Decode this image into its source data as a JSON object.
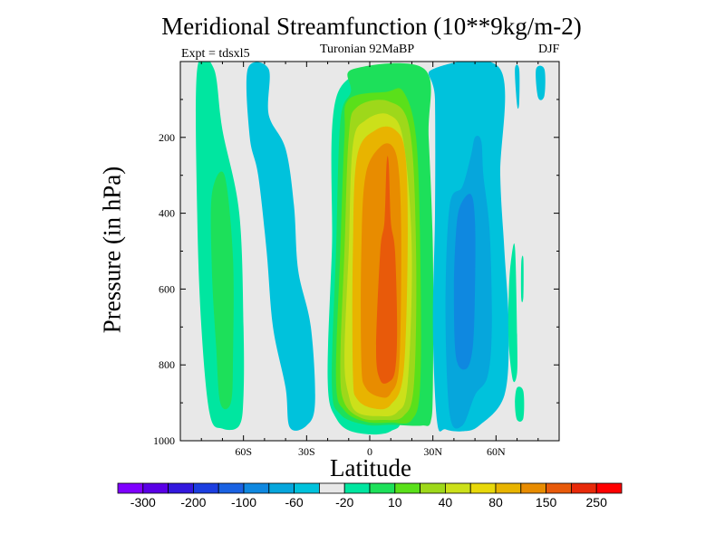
{
  "chart_data": {
    "type": "heatmap",
    "title": "Meridional Streamfunction (10**9kg/m-2)",
    "left_string": "Expt = tdsxl5",
    "center_string": "Turonian  92MaBP",
    "right_string": "DJF",
    "xlabel": "Latitude",
    "ylabel": "Pressure (in hPa)",
    "xlim": [
      -90,
      90
    ],
    "ylim": [
      1000,
      0
    ],
    "x_ticks": [
      {
        "value": -60,
        "label": "60S"
      },
      {
        "value": -30,
        "label": "30S"
      },
      {
        "value": 0,
        "label": "0"
      },
      {
        "value": 30,
        "label": "30N"
      },
      {
        "value": 60,
        "label": "60N"
      }
    ],
    "y_ticks": [
      {
        "value": 200,
        "label": "200"
      },
      {
        "value": 400,
        "label": "400"
      },
      {
        "value": 600,
        "label": "600"
      },
      {
        "value": 800,
        "label": "800"
      },
      {
        "value": 1000,
        "label": "1000"
      }
    ],
    "colorbar": {
      "levels": [
        -300,
        -250,
        -200,
        -150,
        -100,
        -80,
        -60,
        -40,
        -20,
        -10,
        10,
        20,
        40,
        60,
        80,
        100,
        150,
        200,
        250,
        300
      ],
      "labels": [
        "-300",
        "-200",
        "-100",
        "-60",
        "-20",
        "10",
        "40",
        "80",
        "150",
        "250"
      ],
      "colors": [
        "#7f00ff",
        "#5a00e6",
        "#3318de",
        "#1c3ee0",
        "#1a62e2",
        "#0f88e0",
        "#06a6dc",
        "#00c2dc",
        "#e8e8e8",
        "#00e6a0",
        "#1de05a",
        "#5ae01a",
        "#9ed81a",
        "#cce01a",
        "#e8d80a",
        "#e8b400",
        "#e88c00",
        "#e85a0a",
        "#e82a0a",
        "#ff0000"
      ]
    },
    "background_color": "#e8e8e8",
    "contour_regions": [
      {
        "label": "10 to 20",
        "color": "#00e6a0",
        "points": [
          [
            -82,
            20
          ],
          [
            -74,
            20
          ],
          [
            -70,
            180
          ],
          [
            -62,
            400
          ],
          [
            -60,
            700
          ],
          [
            -60,
            880
          ],
          [
            -62,
            960
          ],
          [
            -70,
            968
          ],
          [
            -76,
            930
          ],
          [
            -80,
            700
          ],
          [
            -82,
            400
          ]
        ]
      },
      {
        "label": "20 to 40",
        "color": "#1de05a",
        "points": [
          [
            -75,
            350
          ],
          [
            -69,
            300
          ],
          [
            -65,
            520
          ],
          [
            -65,
            780
          ],
          [
            -66,
            900
          ],
          [
            -71,
            900
          ],
          [
            -73,
            750
          ],
          [
            -75,
            550
          ]
        ]
      },
      {
        "label": "-20 to -10",
        "color": "#00c2dc",
        "points": [
          [
            -58,
            20
          ],
          [
            -48,
            20
          ],
          [
            -48,
            140
          ],
          [
            -40,
            230
          ],
          [
            -36,
            380
          ],
          [
            -34,
            550
          ],
          [
            -28,
            700
          ],
          [
            -26,
            900
          ],
          [
            -30,
            960
          ],
          [
            -38,
            965
          ],
          [
            -40,
            860
          ],
          [
            -46,
            700
          ],
          [
            -49,
            500
          ],
          [
            -53,
            300
          ],
          [
            -57,
            200
          ]
        ]
      },
      {
        "label": "-20 to -10",
        "color": "#00c2dc",
        "points": [
          [
            -12,
            690
          ],
          [
            -8,
            700
          ],
          [
            -8,
            760
          ],
          [
            -14,
            770
          ]
        ]
      },
      {
        "label": "10 to 20",
        "color": "#00e6a0",
        "points": [
          [
            -15,
            80
          ],
          [
            15,
            80
          ],
          [
            18,
            500
          ],
          [
            16,
            900
          ],
          [
            10,
            975
          ],
          [
            -7,
            978
          ],
          [
            -16,
            940
          ],
          [
            -20,
            840
          ],
          [
            -18,
            500
          ]
        ]
      },
      {
        "label": "20 to 40",
        "color": "#1de05a",
        "points": [
          [
            -8,
            20
          ],
          [
            26,
            20
          ],
          [
            28,
            200
          ],
          [
            30,
            500
          ],
          [
            30,
            850
          ],
          [
            29,
            950
          ],
          [
            25,
            960
          ],
          [
            18,
            960
          ],
          [
            10,
            958
          ],
          [
            -2,
            958
          ],
          [
            -14,
            930
          ],
          [
            -18,
            850
          ],
          [
            -16,
            500
          ],
          [
            -14,
            160
          ],
          [
            -9,
            80
          ]
        ]
      },
      {
        "label": "40 to 60",
        "color": "#5ae01a",
        "points": [
          [
            -10,
            100
          ],
          [
            8,
            80
          ],
          [
            16,
            80
          ],
          [
            22,
            200
          ],
          [
            24,
            500
          ],
          [
            24,
            850
          ],
          [
            20,
            945
          ],
          [
            10,
            952
          ],
          [
            -2,
            950
          ],
          [
            -12,
            920
          ],
          [
            -16,
            840
          ],
          [
            -14,
            500
          ],
          [
            -12,
            200
          ]
        ]
      },
      {
        "label": "60 to 80",
        "color": "#9ed81a",
        "points": [
          [
            -6,
            120
          ],
          [
            9,
            105
          ],
          [
            19,
            180
          ],
          [
            22,
            500
          ],
          [
            21,
            850
          ],
          [
            16,
            935
          ],
          [
            6,
            945
          ],
          [
            -4,
            940
          ],
          [
            -12,
            900
          ],
          [
            -14,
            800
          ],
          [
            -12,
            500
          ],
          [
            -10,
            200
          ]
        ]
      },
      {
        "label": "80 to 100",
        "color": "#cce01a",
        "points": [
          [
            -2,
            155
          ],
          [
            9,
            140
          ],
          [
            16,
            210
          ],
          [
            20,
            500
          ],
          [
            18,
            850
          ],
          [
            13,
            925
          ],
          [
            4,
            935
          ],
          [
            -6,
            925
          ],
          [
            -10,
            880
          ],
          [
            -12,
            780
          ],
          [
            -10,
            500
          ],
          [
            -8,
            220
          ]
        ]
      },
      {
        "label": "100 to 150",
        "color": "#e8b400",
        "points": [
          [
            3,
            180
          ],
          [
            12,
            180
          ],
          [
            17,
            250
          ],
          [
            18,
            500
          ],
          [
            16,
            820
          ],
          [
            10,
            905
          ],
          [
            2,
            915
          ],
          [
            -6,
            890
          ],
          [
            -8,
            820
          ],
          [
            -8,
            500
          ],
          [
            -6,
            250
          ]
        ]
      },
      {
        "label": "150 to 200",
        "color": "#e88c00",
        "points": [
          [
            5,
            225
          ],
          [
            11,
            225
          ],
          [
            14,
            300
          ],
          [
            15,
            500
          ],
          [
            14,
            800
          ],
          [
            10,
            875
          ],
          [
            5,
            885
          ],
          [
            -2,
            860
          ],
          [
            -4,
            790
          ],
          [
            -4,
            500
          ],
          [
            -2,
            300
          ]
        ]
      },
      {
        "label": "200 to 250",
        "color": "#e85a0a",
        "points": [
          [
            8,
            268
          ],
          [
            9,
            268
          ],
          [
            10,
            420
          ],
          [
            12,
            500
          ],
          [
            13,
            700
          ],
          [
            12,
            815
          ],
          [
            9,
            845
          ],
          [
            5,
            840
          ],
          [
            3,
            760
          ],
          [
            5,
            500
          ],
          [
            7,
            420
          ]
        ]
      },
      {
        "label": "-20 to -10",
        "color": "#00c2dc",
        "points": [
          [
            30,
            20
          ],
          [
            62,
            20
          ],
          [
            62,
            300
          ],
          [
            64,
            500
          ],
          [
            66,
            700
          ],
          [
            64,
            880
          ],
          [
            52,
            960
          ],
          [
            44,
            975
          ],
          [
            36,
            970
          ],
          [
            32,
            950
          ],
          [
            30,
            700
          ],
          [
            31,
            400
          ],
          [
            31,
            100
          ]
        ]
      },
      {
        "label": "-40 to -20",
        "color": "#06a6dc",
        "points": [
          [
            48,
            250
          ],
          [
            50,
            200
          ],
          [
            53,
            210
          ],
          [
            54,
            300
          ],
          [
            57,
            450
          ],
          [
            58,
            700
          ],
          [
            56,
            830
          ],
          [
            50,
            880
          ],
          [
            44,
            960
          ],
          [
            38,
            930
          ],
          [
            36,
            650
          ],
          [
            38,
            380
          ],
          [
            44,
            330
          ]
        ]
      },
      {
        "label": "-60 to -40",
        "color": "#0f88e0",
        "points": [
          [
            43,
            380
          ],
          [
            48,
            350
          ],
          [
            50,
            420
          ],
          [
            50,
            600
          ],
          [
            49,
            750
          ],
          [
            46,
            810
          ],
          [
            41,
            780
          ],
          [
            40,
            600
          ],
          [
            41,
            450
          ]
        ]
      },
      {
        "label": "10 to 20",
        "color": "#00e6a0",
        "points": [
          [
            67,
            530
          ],
          [
            69,
            490
          ],
          [
            70,
            720
          ],
          [
            70,
            820
          ],
          [
            68,
            840
          ],
          [
            66,
            740
          ],
          [
            66,
            620
          ]
        ]
      },
      {
        "label": "10 to 20",
        "color": "#00e6a0",
        "points": [
          [
            70,
            860
          ],
          [
            73,
            870
          ],
          [
            73,
            940
          ],
          [
            70,
            945
          ],
          [
            69,
            900
          ]
        ]
      },
      {
        "label": "10 to 20",
        "color": "#00e6a0",
        "points": [
          [
            72,
            530
          ],
          [
            73,
            520
          ],
          [
            73,
            620
          ],
          [
            72,
            625
          ]
        ]
      },
      {
        "label": "-20 to -10",
        "color": "#00c2dc",
        "points": [
          [
            69,
            20
          ],
          [
            71,
            20
          ],
          [
            71,
            110
          ],
          [
            70,
            115
          ]
        ]
      },
      {
        "label": "-20 to -10",
        "color": "#00c2dc",
        "points": [
          [
            79,
            20
          ],
          [
            83,
            20
          ],
          [
            83,
            90
          ],
          [
            80,
            95
          ]
        ]
      }
    ]
  }
}
